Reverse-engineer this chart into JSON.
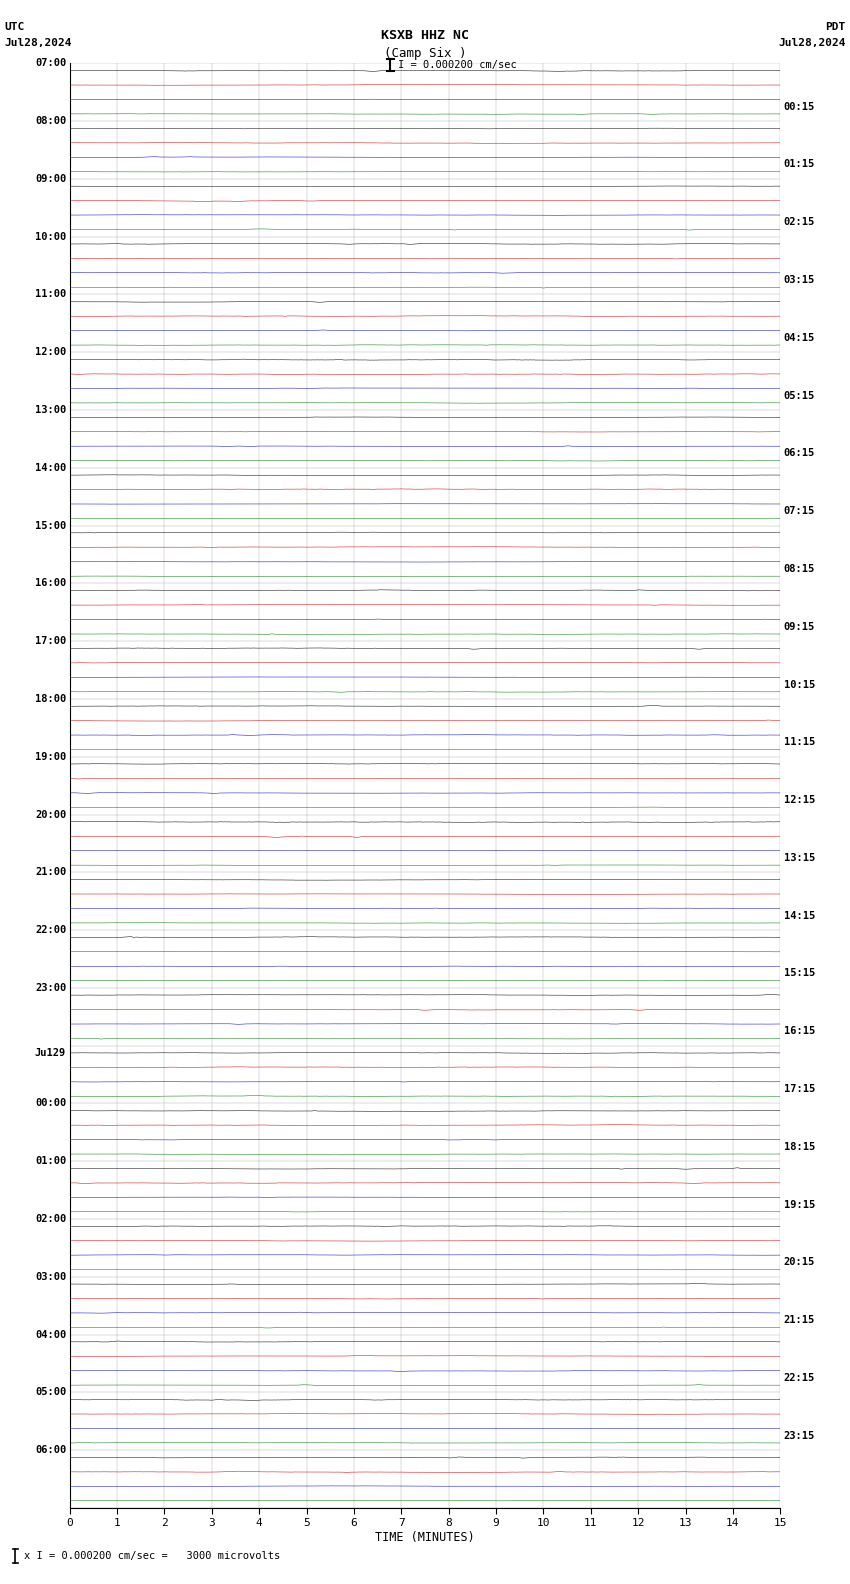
{
  "title_line1": "KSXB HHZ NC",
  "title_line2": "(Camp Six )",
  "scale_label": "I = 0.000200 cm/sec",
  "utc_label": "UTC",
  "pdt_label": "PDT",
  "date_left": "Jul28,2024",
  "date_right": "Jul28,2024",
  "bottom_note": "x I = 0.000200 cm/sec =   3000 microvolts",
  "xlabel": "TIME (MINUTES)",
  "left_times": [
    "07:00",
    "08:00",
    "09:00",
    "10:00",
    "11:00",
    "12:00",
    "13:00",
    "14:00",
    "15:00",
    "16:00",
    "17:00",
    "18:00",
    "19:00",
    "20:00",
    "21:00",
    "22:00",
    "23:00",
    "Ju129",
    "00:00",
    "01:00",
    "02:00",
    "03:00",
    "04:00",
    "05:00",
    "06:00"
  ],
  "right_times": [
    "00:15",
    "01:15",
    "02:15",
    "03:15",
    "04:15",
    "05:15",
    "06:15",
    "07:15",
    "08:15",
    "09:15",
    "10:15",
    "11:15",
    "12:15",
    "13:15",
    "14:15",
    "15:15",
    "16:15",
    "17:15",
    "18:15",
    "19:15",
    "20:15",
    "21:15",
    "22:15",
    "23:15"
  ],
  "n_rows": 25,
  "n_channels": 4,
  "row_colors": [
    "#000000",
    "#cc0000",
    "#0000cc",
    "#007700"
  ],
  "bg_color": "#ffffff",
  "grid_color": "#888888",
  "xticks": [
    0,
    1,
    2,
    3,
    4,
    5,
    6,
    7,
    8,
    9,
    10,
    11,
    12,
    13,
    14,
    15
  ],
  "xlim": [
    0,
    15
  ],
  "noise_amplitude": [
    0.03,
    0.025,
    0.02,
    0.018
  ],
  "figsize": [
    8.5,
    15.84
  ],
  "dpi": 100
}
